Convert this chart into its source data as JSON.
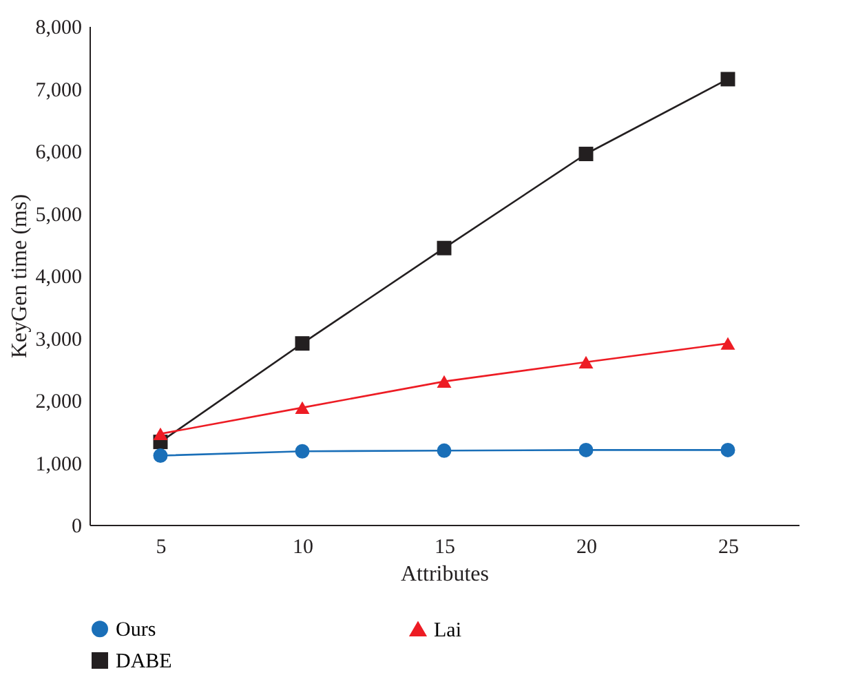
{
  "chart_data": {
    "type": "line",
    "xlabel": "Attributes",
    "ylabel": "KeyGen time (ms)",
    "categories": [
      "5",
      "10",
      "15",
      "20",
      "25"
    ],
    "series": [
      {
        "name": "Ours",
        "color": "#1a6fb8",
        "marker": "circle",
        "values": [
          1110,
          1180,
          1190,
          1200,
          1200
        ]
      },
      {
        "name": "Lai",
        "color": "#ed1c24",
        "marker": "triangle",
        "values": [
          1460,
          1880,
          2300,
          2610,
          2910
        ]
      },
      {
        "name": "DABE",
        "color": "#231f20",
        "marker": "square",
        "values": [
          1330,
          2910,
          4440,
          5950,
          7150
        ]
      }
    ],
    "ylim": [
      0,
      8000
    ],
    "yticks": [
      0,
      {
        "value": 1000,
        "label": "1,000"
      },
      {
        "value": 2000,
        "label": "2,000"
      },
      {
        "value": 3000,
        "label": "3,000"
      },
      {
        "value": 4000,
        "label": "4,000"
      },
      {
        "value": 5000,
        "label": "5,000"
      },
      {
        "value": 6000,
        "label": "6,000"
      },
      {
        "value": 7000,
        "label": "7,000"
      },
      {
        "value": 8000,
        "label": "8,000"
      }
    ],
    "grid": false,
    "legend": "bottom",
    "line_style": "solid"
  }
}
